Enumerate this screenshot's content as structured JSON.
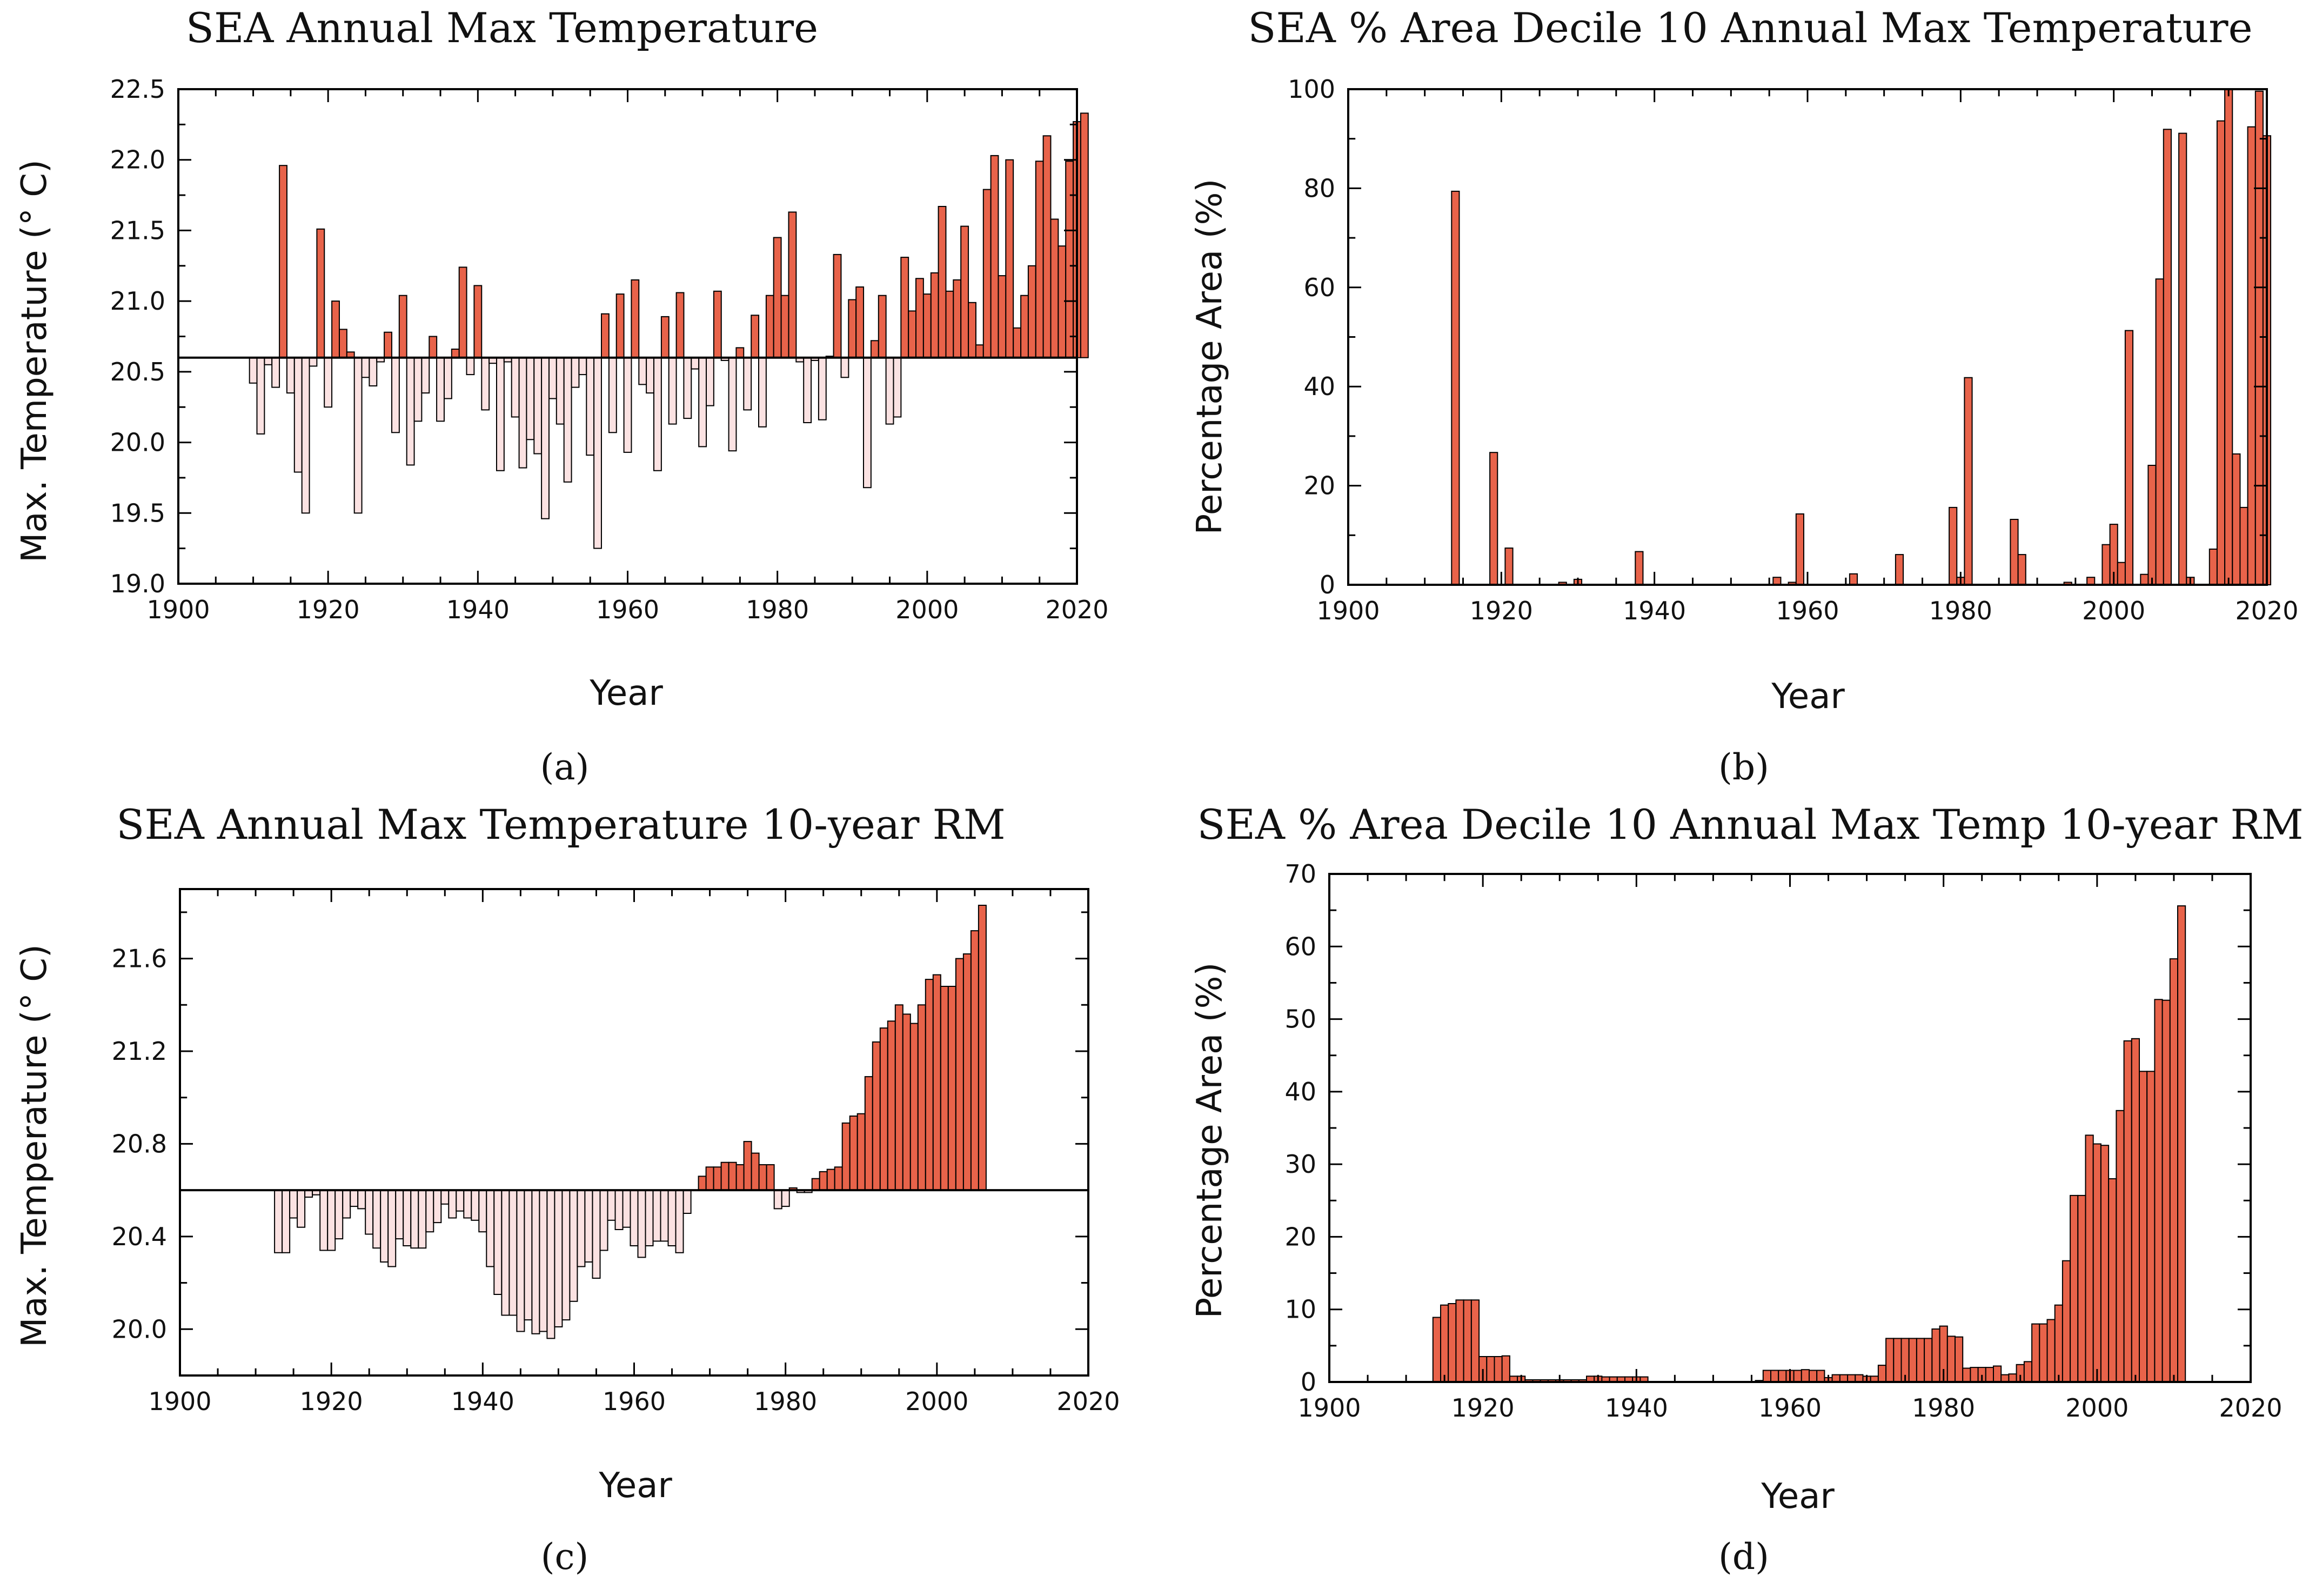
{
  "chart_data": [
    {
      "id": "a",
      "type": "bar",
      "title": "SEA Annual Max Temperature",
      "panel_label": "(a)",
      "xlabel": "Year",
      "ylabel": "Max. Temperature (° C)",
      "xlim": [
        1900,
        2020
      ],
      "ylim": [
        19.0,
        22.5
      ],
      "xticks": [
        1900,
        1920,
        1940,
        1960,
        1980,
        2000,
        2020
      ],
      "yticks": [
        19.0,
        19.5,
        20.0,
        20.5,
        21.0,
        21.5,
        22.0,
        22.5
      ],
      "ytick_labels": [
        "19.0",
        "19.5",
        "20.0",
        "20.5",
        "21.0",
        "21.5",
        "22.0",
        "22.5"
      ],
      "baseline": 20.6,
      "x_start": 1910,
      "values": [
        20.42,
        20.06,
        20.55,
        20.39,
        21.96,
        20.35,
        19.79,
        19.5,
        20.54,
        21.51,
        20.25,
        21.0,
        20.8,
        20.64,
        19.5,
        20.46,
        20.4,
        20.57,
        20.78,
        20.07,
        21.04,
        19.84,
        20.15,
        20.35,
        20.75,
        20.15,
        20.31,
        20.66,
        21.24,
        20.48,
        21.11,
        20.23,
        20.56,
        19.8,
        20.57,
        20.18,
        19.82,
        20.02,
        19.92,
        19.46,
        20.31,
        20.13,
        19.72,
        20.39,
        20.48,
        19.91,
        19.25,
        20.91,
        20.07,
        21.05,
        19.93,
        21.15,
        20.41,
        20.35,
        19.8,
        20.89,
        20.13,
        21.06,
        20.17,
        20.52,
        19.97,
        20.26,
        21.07,
        20.58,
        19.94,
        20.67,
        20.23,
        20.9,
        20.11,
        21.04,
        21.45,
        21.04,
        21.63,
        20.57,
        20.14,
        20.58,
        20.16,
        20.61,
        21.33,
        20.46,
        21.01,
        21.1,
        19.68,
        20.72,
        21.04,
        20.13,
        20.18,
        21.31,
        20.93,
        21.16,
        21.05,
        21.2,
        21.67,
        21.07,
        21.15,
        21.53,
        20.99,
        20.69,
        21.79,
        22.03,
        21.18,
        22.0,
        20.81,
        21.04,
        21.25,
        21.99,
        22.17,
        21.58,
        21.39,
        21.99,
        22.27,
        22.33
      ],
      "colors": {
        "above": "#e8634a",
        "below": "#fbe2e2"
      }
    },
    {
      "id": "b",
      "type": "bar",
      "title": "SEA % Area Decile 10 Annual Max Temperature",
      "panel_label": "(b)",
      "xlabel": "Year",
      "ylabel": "Percentage Area (%)",
      "xlim": [
        1900,
        2020
      ],
      "ylim": [
        0,
        100
      ],
      "xticks": [
        1900,
        1920,
        1940,
        1960,
        1980,
        2000,
        2020
      ],
      "yticks": [
        0,
        20,
        40,
        60,
        80,
        100
      ],
      "ytick_labels": [
        "0",
        "20",
        "40",
        "60",
        "80",
        "100"
      ],
      "baseline": 0,
      "x_start": 1910,
      "values": [
        0,
        0,
        0,
        0,
        79.4,
        0,
        0,
        0,
        0,
        26.7,
        0,
        7.4,
        0,
        0,
        0,
        0,
        0,
        0,
        0.5,
        0,
        1.1,
        0,
        0,
        0,
        0,
        0,
        0,
        0,
        6.7,
        0,
        0,
        0,
        0,
        0,
        0,
        0,
        0,
        0,
        0,
        0,
        0,
        0,
        0,
        0,
        0,
        0,
        1.5,
        0,
        0.5,
        14.3,
        0,
        0,
        0,
        0,
        0,
        0,
        2.2,
        0,
        0,
        0,
        0,
        0,
        6.1,
        0,
        0,
        0,
        0,
        0,
        0,
        15.6,
        1.5,
        41.8,
        0,
        0,
        0,
        0,
        0,
        13.2,
        6.1,
        0,
        0,
        0,
        0,
        0,
        0.5,
        0,
        0,
        1.5,
        0,
        8.1,
        12.2,
        4.5,
        51.3,
        0,
        2.1,
        24.1,
        61.7,
        91.9,
        0,
        91.1,
        1.5,
        0,
        0,
        7.2,
        93.6,
        100.0,
        26.4,
        15.6,
        92.4,
        99.6,
        90.6
      ],
      "colors": {
        "above": "#e8634a",
        "below": "#fbe2e2"
      }
    },
    {
      "id": "c",
      "type": "bar",
      "title": "SEA Annual Max Temperature 10-year RM",
      "panel_label": "(c)",
      "xlabel": "Year",
      "ylabel": "Max. Temperature (° C)",
      "xlim": [
        1900,
        2020
      ],
      "ylim": [
        19.8,
        21.9
      ],
      "xticks": [
        1900,
        1920,
        1940,
        1960,
        1980,
        2000,
        2020
      ],
      "yticks": [
        20.0,
        20.4,
        20.8,
        21.2,
        21.6
      ],
      "ytick_labels": [
        "20.0",
        "20.4",
        "20.8",
        "21.2",
        "21.6"
      ],
      "baseline": 20.6,
      "x_start": 1913,
      "values": [
        20.33,
        20.33,
        20.48,
        20.44,
        20.57,
        20.58,
        20.34,
        20.34,
        20.39,
        20.48,
        20.53,
        20.52,
        20.41,
        20.35,
        20.29,
        20.27,
        20.39,
        20.36,
        20.35,
        20.35,
        20.42,
        20.46,
        20.54,
        20.48,
        20.51,
        20.48,
        20.47,
        20.42,
        20.27,
        20.15,
        20.06,
        20.06,
        19.99,
        20.04,
        19.98,
        19.99,
        19.96,
        20.01,
        20.04,
        20.12,
        20.27,
        20.29,
        20.22,
        20.34,
        20.47,
        20.43,
        20.44,
        20.36,
        20.31,
        20.36,
        20.38,
        20.38,
        20.36,
        20.33,
        20.5,
        20.6,
        20.66,
        20.7,
        20.7,
        20.72,
        20.72,
        20.71,
        20.81,
        20.76,
        20.71,
        20.71,
        20.52,
        20.53,
        20.61,
        20.59,
        20.59,
        20.65,
        20.68,
        20.69,
        20.7,
        20.89,
        20.92,
        20.93,
        21.09,
        21.24,
        21.3,
        21.33,
        21.4,
        21.36,
        21.32,
        21.4,
        21.51,
        21.53,
        21.48,
        21.48,
        21.6,
        21.62,
        21.72,
        21.83
      ],
      "colors": {
        "above": "#e8634a",
        "below": "#fbe2e2"
      }
    },
    {
      "id": "d",
      "type": "bar",
      "title": "SEA % Area Decile 10 Annual Max Temp 10-year RM",
      "panel_label": "(d)",
      "xlabel": "Year",
      "ylabel": "Percentage Area (%)",
      "xlim": [
        1900,
        2020
      ],
      "ylim": [
        0,
        70
      ],
      "xticks": [
        1900,
        1920,
        1940,
        1960,
        1980,
        2000,
        2020
      ],
      "yticks": [
        0,
        10,
        20,
        30,
        40,
        50,
        60,
        70
      ],
      "ytick_labels": [
        "0",
        "10",
        "20",
        "30",
        "40",
        "50",
        "60",
        "70"
      ],
      "baseline": 0,
      "x_start": 1914,
      "values": [
        8.9,
        10.6,
        10.8,
        11.3,
        11.3,
        11.3,
        3.5,
        3.5,
        3.5,
        3.6,
        0.8,
        0.8,
        0.3,
        0.3,
        0.3,
        0.3,
        0.3,
        0.3,
        0.3,
        0.3,
        0.8,
        0.8,
        0.7,
        0.7,
        0.7,
        0.7,
        0.7,
        0.7,
        0,
        0,
        0,
        0,
        0,
        0,
        0,
        0,
        0,
        0,
        0,
        0,
        0,
        0,
        0.2,
        1.6,
        1.6,
        1.6,
        1.6,
        1.6,
        1.7,
        1.6,
        1.6,
        0.6,
        1.0,
        1.0,
        1.0,
        1.0,
        0.8,
        0.8,
        2.3,
        6.0,
        6.0,
        6.0,
        6.0,
        6.0,
        6.0,
        7.3,
        7.7,
        6.3,
        6.2,
        1.9,
        2.0,
        2.0,
        2.0,
        2.2,
        1.0,
        1.1,
        2.4,
        2.8,
        8.0,
        8.0,
        8.6,
        10.6,
        16.7,
        25.7,
        25.7,
        34.0,
        32.8,
        32.6,
        28.0,
        37.4,
        47.0,
        47.3,
        42.8,
        42.8,
        52.7,
        52.6,
        58.3,
        65.6
      ],
      "colors": {
        "above": "#e8634a",
        "below": "#fbe2e2"
      }
    }
  ]
}
